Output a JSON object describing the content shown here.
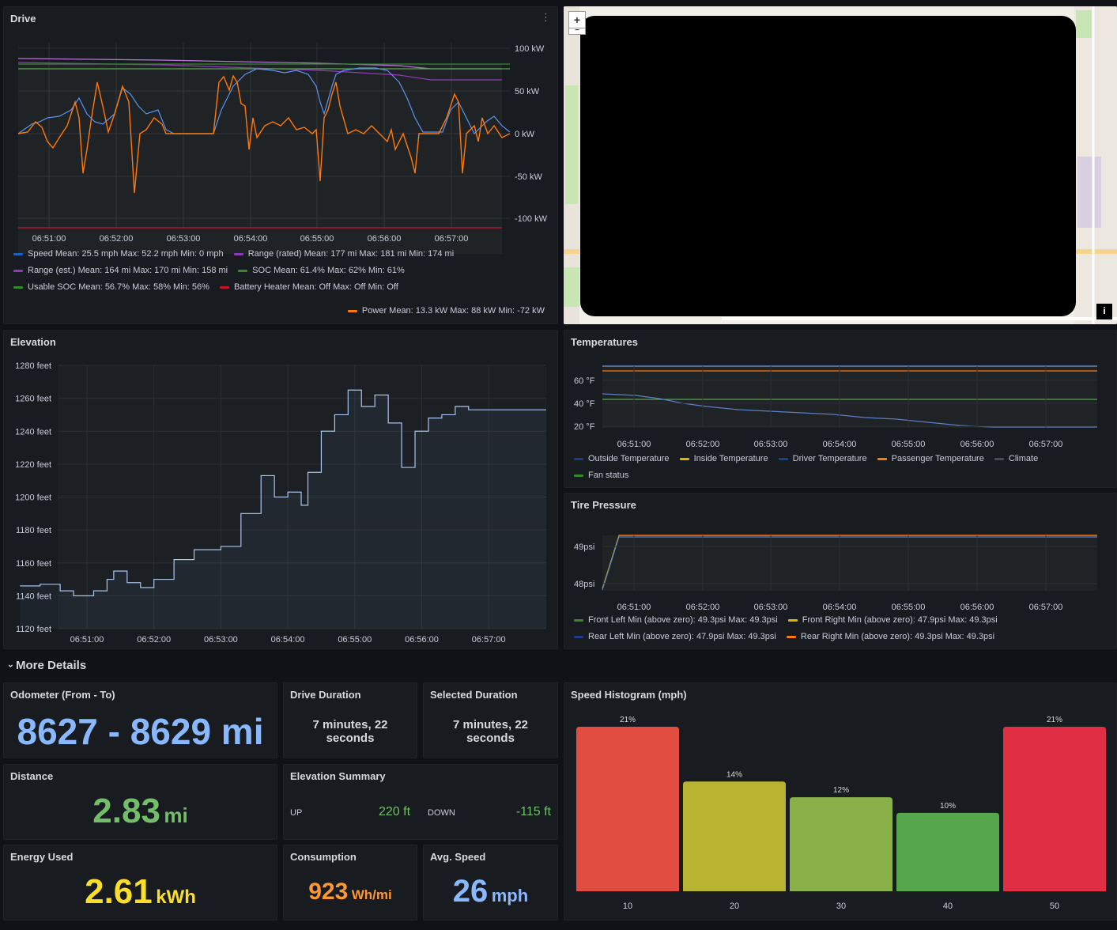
{
  "drive": {
    "title": "Drive",
    "y_ticks": [
      "100 kW",
      "50 kW",
      "0 kW",
      "-50 kW",
      "-100 kW"
    ],
    "x_ticks": [
      "06:51:00",
      "06:52:00",
      "06:53:00",
      "06:54:00",
      "06:55:00",
      "06:56:00",
      "06:57:00"
    ],
    "legend": [
      {
        "text": "Speed  Mean: 25.5 mph  Max: 52.2 mph  Min: 0 mph",
        "color": "#5794f2"
      },
      {
        "text": "Range (rated)  Mean: 177 mi  Max: 181 mi  Min: 174 mi",
        "color": "#b877d9"
      },
      {
        "text": "Range (est.)  Mean: 164 mi  Max: 170 mi  Min: 158 mi",
        "color": "#8f3bb8"
      },
      {
        "text": "SOC  Mean: 61.4%  Max: 62%  Min: 61%",
        "color": "#37872d"
      },
      {
        "text": "Usable SOC  Mean: 56.7%  Max: 58%  Min: 56%",
        "color": "#56a64b"
      },
      {
        "text": "Battery Heater  Mean: Off  Max: Off  Min: Off",
        "color": "#c4162a"
      },
      {
        "text": "Power  Mean: 13.3 kW  Max: 88 kW  Min: -72 kW",
        "color": "#ff780a"
      }
    ]
  },
  "map": {
    "zoom_in": "+",
    "zoom_out": "−",
    "info": "i"
  },
  "elevation": {
    "title": "Elevation",
    "y_ticks": [
      "1280 feet",
      "1260 feet",
      "1240 feet",
      "1220 feet",
      "1200 feet",
      "1180 feet",
      "1160 feet",
      "1140 feet",
      "1120 feet"
    ],
    "x_ticks": [
      "06:51:00",
      "06:52:00",
      "06:53:00",
      "06:54:00",
      "06:55:00",
      "06:56:00",
      "06:57:00"
    ]
  },
  "temperatures": {
    "title": "Temperatures",
    "y_ticks": [
      "60 °F",
      "40 °F",
      "20 °F"
    ],
    "x_ticks": [
      "06:51:00",
      "06:52:00",
      "06:53:00",
      "06:54:00",
      "06:55:00",
      "06:56:00",
      "06:57:00"
    ],
    "legend": [
      {
        "text": "Outside Temperature",
        "color": "#1f60c4"
      },
      {
        "text": "Inside Temperature",
        "color": "#e0b400"
      },
      {
        "text": "Driver Temperature",
        "color": "#1f3b8a"
      },
      {
        "text": "Passenger Temperature",
        "color": "#ff780a"
      },
      {
        "text": "Climate",
        "color": "#464c54"
      },
      {
        "text": "Fan status",
        "color": "#37872d"
      }
    ]
  },
  "tire": {
    "title": "Tire Pressure",
    "y_ticks": [
      "49psi",
      "48psi"
    ],
    "x_ticks": [
      "06:51:00",
      "06:52:00",
      "06:53:00",
      "06:54:00",
      "06:55:00",
      "06:56:00",
      "06:57:00"
    ],
    "legend": [
      {
        "text": "Front Left  Min (above zero): 49.3psi  Max: 49.3psi",
        "color": "#37872d"
      },
      {
        "text": "Front Right  Min (above zero): 47.9psi  Max: 49.3psi",
        "color": "#e0b400"
      },
      {
        "text": "Rear Left  Min (above zero): 47.9psi  Max: 49.3psi",
        "color": "#1f3b8a"
      },
      {
        "text": "Rear Right  Min (above zero): 49.3psi  Max: 49.3psi",
        "color": "#ff780a"
      }
    ]
  },
  "section": {
    "chevron": "›",
    "label": "More Details"
  },
  "odometer": {
    "title": "Odometer (From - To)",
    "value": "8627 - 8629 mi",
    "color": "#8ab8ff"
  },
  "drive_duration": {
    "title": "Drive Duration",
    "line1": "7 minutes, 22",
    "line2": "seconds"
  },
  "selected_duration": {
    "title": "Selected Duration",
    "line1": "7 minutes, 22",
    "line2": "seconds"
  },
  "distance": {
    "title": "Distance",
    "value": "2.83",
    "unit": "mi",
    "color": "#73bf69"
  },
  "elevation_summary": {
    "title": "Elevation Summary",
    "up_label": "UP",
    "up_value": "220 ft",
    "down_label": "DOWN",
    "down_value": "-115 ft",
    "color": "#73bf69"
  },
  "energy": {
    "title": "Energy Used",
    "value": "2.61",
    "unit": "kWh",
    "color": "#fade2a"
  },
  "consumption": {
    "title": "Consumption",
    "value": "923",
    "unit": "Wh/mi",
    "color": "#ff9830"
  },
  "avg_speed": {
    "title": "Avg. Speed",
    "value": "26",
    "unit": "mph",
    "color": "#8ab8ff"
  },
  "histogram": {
    "title": "Speed Histogram (mph)"
  },
  "chart_data": [
    {
      "type": "bar",
      "title": "Speed Histogram (mph)",
      "categories": [
        "10",
        "20",
        "30",
        "40",
        "50"
      ],
      "values": [
        21,
        14,
        12,
        10,
        21
      ],
      "labels": [
        "21%",
        "14%",
        "12%",
        "10%",
        "21%"
      ],
      "colors": [
        "#e24d42",
        "#b8b432",
        "#8ab04a",
        "#56a64b",
        "#e02f44"
      ],
      "ylim": [
        0,
        21.5
      ]
    },
    {
      "type": "line",
      "title": "Elevation",
      "x_minutes_after_0650": [
        0.0,
        0.3,
        0.6,
        0.8,
        1.1,
        1.3,
        1.4,
        1.6,
        1.8,
        2.0,
        2.3,
        2.6,
        2.8,
        3.0,
        3.3,
        3.6,
        3.8,
        4.0,
        4.2,
        4.3,
        4.5,
        4.7,
        4.9,
        5.1,
        5.3,
        5.5,
        5.7,
        5.9,
        6.1,
        6.3,
        6.5,
        6.7,
        7.0
      ],
      "x": [
        "06:50:36",
        "06:50:54",
        "06:51:12",
        "06:51:24",
        "06:51:42",
        "06:51:54",
        "06:52:00",
        "06:52:12",
        "06:52:24",
        "06:52:36",
        "06:52:54",
        "06:53:12",
        "06:53:24",
        "06:53:36",
        "06:53:54",
        "06:54:12",
        "06:54:24",
        "06:54:36",
        "06:54:48",
        "06:54:54",
        "06:55:06",
        "06:55:18",
        "06:55:30",
        "06:55:42",
        "06:55:54",
        "06:56:06",
        "06:56:18",
        "06:56:30",
        "06:56:42",
        "06:56:54",
        "06:57:06",
        "06:57:18",
        "06:57:36"
      ],
      "y": [
        1146,
        1147,
        1143,
        1140,
        1143,
        1150,
        1155,
        1148,
        1145,
        1150,
        1162,
        1168,
        1168,
        1170,
        1190,
        1213,
        1200,
        1203,
        1195,
        1215,
        1240,
        1250,
        1265,
        1255,
        1262,
        1245,
        1218,
        1240,
        1248,
        1250,
        1255,
        1253,
        1253
      ],
      "ylabel": "",
      "ylim": [
        1120,
        1280
      ]
    }
  ]
}
